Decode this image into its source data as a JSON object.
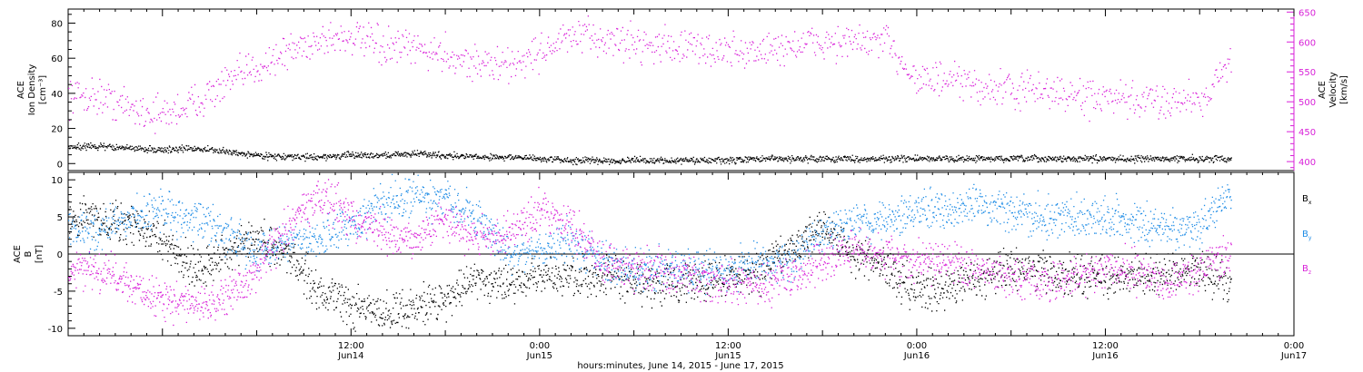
{
  "chart_data": [
    {
      "type": "scatter",
      "panel": "top",
      "left_ylabel_lines": [
        "ACE",
        "Ion Density",
        "[cm⁻³]"
      ],
      "right_ylabel_lines": [
        "ACE",
        "Velocity",
        "[km/s]"
      ],
      "ylim_left": [
        -4,
        88
      ],
      "ylim_right": [
        385,
        655
      ],
      "left_ticks": [
        "0",
        "20",
        "40",
        "60",
        "80"
      ],
      "left_tick_values": [
        0,
        20,
        40,
        60,
        80
      ],
      "right_ticks": [
        "400",
        "450",
        "500",
        "550",
        "600",
        "650"
      ],
      "right_tick_values": [
        400,
        450,
        500,
        550,
        600,
        650
      ],
      "x_unit": "hours since 2015-06-14 00:00 UT",
      "xlim": [
        -6,
        72
      ],
      "colors": {
        "density": "#000000",
        "velocity": "#d81fd8"
      },
      "series": [
        {
          "name": "Ion Density",
          "axis": "left",
          "color": "#000000",
          "x": [
            -6,
            -4,
            -2,
            0,
            2,
            4,
            6,
            8,
            10,
            12,
            14,
            16,
            18,
            20,
            22,
            24,
            26,
            28,
            30,
            32,
            34,
            36,
            38,
            40,
            42,
            44,
            46,
            48,
            50,
            52,
            54,
            56,
            58,
            60,
            62,
            64,
            66,
            68
          ],
          "y": [
            10,
            10,
            9,
            8,
            9,
            7,
            5,
            4,
            4,
            5,
            5,
            6,
            5,
            4,
            4,
            3,
            2,
            2,
            2,
            2,
            2,
            2,
            3,
            3,
            3,
            3,
            3,
            3,
            3,
            3,
            3,
            3,
            3,
            3,
            3,
            3,
            3,
            3
          ]
        },
        {
          "name": "Velocity",
          "axis": "right",
          "color": "#d81fd8",
          "x": [
            -6,
            -4,
            -2,
            0,
            2,
            4,
            6,
            8,
            10,
            12,
            14,
            16,
            18,
            20,
            22,
            24,
            26,
            28,
            30,
            32,
            34,
            36,
            38,
            40,
            42,
            44,
            46,
            48,
            50,
            52,
            54,
            56,
            58,
            60,
            62,
            64,
            66,
            68
          ],
          "y": [
            512,
            510,
            490,
            478,
            500,
            530,
            560,
            585,
            605,
            610,
            590,
            590,
            580,
            565,
            560,
            585,
            610,
            605,
            600,
            595,
            590,
            585,
            585,
            595,
            600,
            600,
            600,
            540,
            535,
            525,
            520,
            520,
            510,
            505,
            500,
            505,
            505,
            565
          ]
        }
      ]
    },
    {
      "type": "scatter",
      "panel": "bottom",
      "ylabel_lines": [
        "ACE",
        "B",
        "[nT]"
      ],
      "ylim": [
        -11,
        11
      ],
      "ticks": [
        "-10",
        "-5",
        "0",
        "5",
        "10"
      ],
      "tick_values": [
        -10,
        -5,
        0,
        5,
        10
      ],
      "xlim": [
        -6,
        72
      ],
      "x_unit": "hours since 2015-06-14 00:00 UT",
      "xlabel": "hours:minutes, June 14, 2015 - June 17, 2015",
      "x_ticks": [
        {
          "value": 12,
          "time": "12:00",
          "day": "Jun14"
        },
        {
          "value": 24,
          "time": "0:00",
          "day": "Jun15"
        },
        {
          "value": 36,
          "time": "12:00",
          "day": "Jun15"
        },
        {
          "value": 48,
          "time": "0:00",
          "day": "Jun16"
        },
        {
          "value": 60,
          "time": "12:00",
          "day": "Jun16"
        },
        {
          "value": 72,
          "time": "0:00",
          "day": "Jun17"
        }
      ],
      "series": [
        {
          "name": "Bx",
          "label_main": "B",
          "label_sub": "x",
          "color": "#000000",
          "x": [
            -6,
            -4,
            -2,
            0,
            2,
            4,
            6,
            8,
            10,
            12,
            14,
            16,
            18,
            20,
            22,
            24,
            26,
            28,
            30,
            32,
            34,
            36,
            38,
            40,
            42,
            44,
            46,
            48,
            50,
            52,
            54,
            56,
            58,
            60,
            62,
            64,
            66,
            68
          ],
          "y": [
            5,
            5,
            4,
            2,
            -2,
            0,
            2,
            0,
            -5,
            -7,
            -8,
            -7,
            -6,
            -3,
            -4,
            -3,
            -3,
            -3,
            -4,
            -4,
            -4,
            -3,
            -2,
            1,
            4,
            0,
            -2,
            -5,
            -4,
            -3,
            -2,
            -2,
            -3,
            -3,
            -3,
            -3,
            -2,
            -4
          ]
        },
        {
          "name": "By",
          "label_main": "B",
          "label_sub": "y",
          "color": "#1e8ce6",
          "x": [
            -6,
            -4,
            -2,
            0,
            2,
            4,
            6,
            8,
            10,
            12,
            14,
            16,
            18,
            20,
            22,
            24,
            26,
            28,
            30,
            32,
            34,
            36,
            38,
            40,
            42,
            44,
            46,
            48,
            50,
            52,
            54,
            56,
            58,
            60,
            62,
            64,
            66,
            68
          ],
          "y": [
            4,
            3,
            5,
            6,
            5,
            3,
            0,
            2,
            2,
            4,
            7,
            8,
            7,
            5,
            0,
            1,
            2,
            -1,
            -2,
            -2,
            -2,
            -2,
            -1,
            -1,
            3,
            4,
            5,
            6,
            6,
            7,
            6,
            5,
            5,
            5,
            4,
            3,
            4,
            8
          ]
        },
        {
          "name": "Bz",
          "label_main": "B",
          "label_sub": "z",
          "color": "#d81fd8",
          "x": [
            -6,
            -4,
            -2,
            0,
            2,
            4,
            6,
            8,
            10,
            12,
            14,
            16,
            18,
            20,
            22,
            24,
            26,
            28,
            30,
            32,
            34,
            36,
            38,
            40,
            42,
            44,
            46,
            48,
            50,
            52,
            54,
            56,
            58,
            60,
            62,
            64,
            66,
            68
          ],
          "y": [
            -2,
            -2,
            -4,
            -6,
            -7,
            -6,
            -2,
            4,
            8,
            5,
            3,
            2,
            5,
            2,
            3,
            6,
            4,
            -1,
            -2,
            -2,
            -3,
            -4,
            -4,
            -3,
            -1,
            1,
            0,
            -1,
            -1,
            -2,
            -3,
            -4,
            -3,
            -2,
            -2,
            -4,
            -2,
            0
          ]
        }
      ]
    }
  ]
}
